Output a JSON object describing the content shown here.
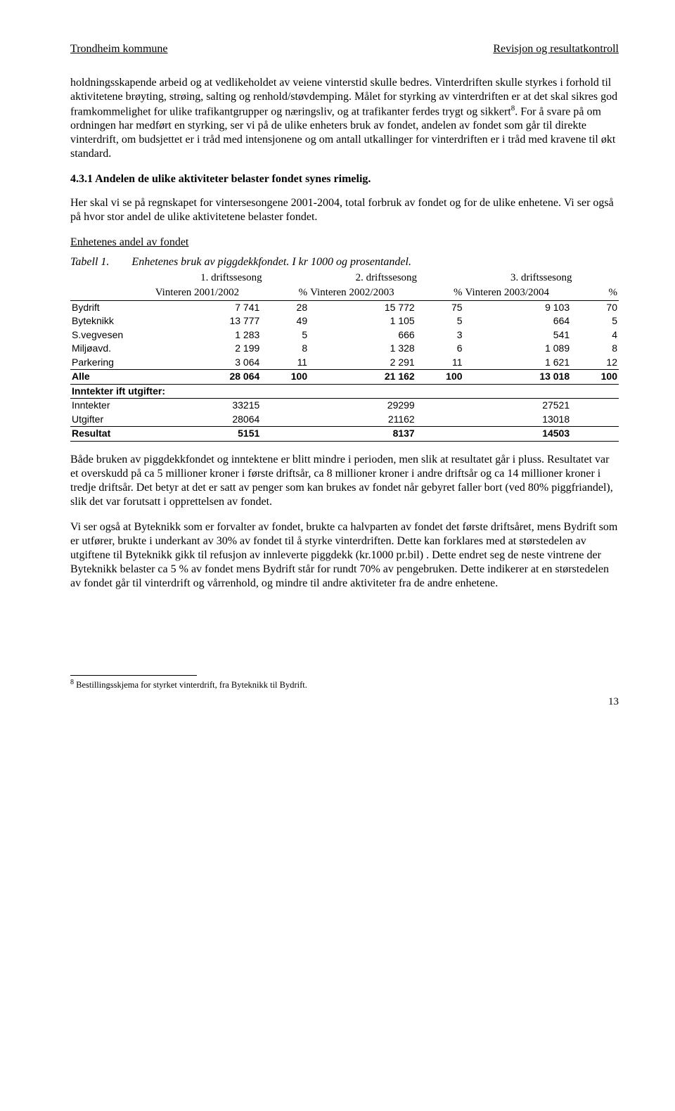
{
  "header": {
    "left": "Trondheim kommune",
    "right": "Revisjon og resultatkontroll"
  },
  "para1": "holdningsskapende arbeid og at vedlikeholdet av veiene vinterstid skulle bedres. Vinterdriften skulle styrkes i forhold til aktivitetene brøyting, strøing, salting og renhold/støvdemping. Målet for styrking av vinterdriften er at det skal sikres god framkommelighet for ulike trafikantgrupper og næringsliv, og at trafikanter ferdes trygt og sikkert",
  "para1_after_sup": ". For å svare på om ordningen har medført en styrking, ser vi på de ulike enheters bruk av fondet, andelen av fondet som går til direkte vinterdrift, om budsjettet er i tråd med intensjonene og om antall utkallinger for vinterdriften er i tråd med kravene til økt standard.",
  "footref": "8",
  "heading431": "4.3.1 Andelen de ulike aktiviteter belaster fondet synes rimelig.",
  "para2": "Her skal vi se på regnskapet for vintersesongene 2001-2004, total forbruk av fondet og for de ulike enhetene. Vi ser også på hvor stor andel de ulike aktivitetene belaster fondet.",
  "subheading": "Enhetenes andel av fondet",
  "table": {
    "title_label": "Tabell 1.",
    "title_text": "Enhetenes bruk av piggdekkfondet. I kr 1000 og prosentandel.",
    "sup_headers": [
      "1. driftssesong",
      "2. driftssesong",
      "3. driftssesong"
    ],
    "sub_headers": [
      "Vinteren 2001/2002",
      "%",
      "Vinteren 2002/2003",
      "%",
      "Vinteren 2003/2004",
      "%"
    ],
    "rows": [
      {
        "label": "Bydrift",
        "v": [
          "7 741",
          "28",
          "15 772",
          "75",
          "9 103",
          "70"
        ]
      },
      {
        "label": "Byteknikk",
        "v": [
          "13 777",
          "49",
          "1 105",
          "5",
          "664",
          "5"
        ]
      },
      {
        "label": "S.vegvesen",
        "v": [
          "1 283",
          "5",
          "666",
          "3",
          "541",
          "4"
        ]
      },
      {
        "label": "Miljøavd.",
        "v": [
          "2 199",
          "8",
          "1 328",
          "6",
          "1 089",
          "8"
        ]
      },
      {
        "label": "Parkering",
        "v": [
          "3 064",
          "11",
          "2 291",
          "11",
          "1 621",
          "12"
        ]
      }
    ],
    "total": {
      "label": "Alle",
      "v": [
        "28 064",
        "100",
        "21 162",
        "100",
        "13 018",
        "100"
      ]
    },
    "section2_label": "Inntekter ift utgifter:",
    "rows2": [
      {
        "label": "Inntekter",
        "v": [
          "33215",
          "",
          "29299",
          "",
          "27521",
          ""
        ]
      },
      {
        "label": "Utgifter",
        "v": [
          "28064",
          "",
          "21162",
          "",
          "13018",
          ""
        ]
      }
    ],
    "result": {
      "label": "Resultat",
      "v": [
        "5151",
        "",
        "8137",
        "",
        "14503",
        ""
      ]
    }
  },
  "para3": "Både bruken av piggdekkfondet og inntektene er blitt mindre i perioden, men slik at resultatet går i pluss. Resultatet var et overskudd på ca 5 millioner kroner i første driftsår, ca 8 millioner kroner i andre driftsår og ca 14 millioner kroner i tredje driftsår. Det betyr at det er satt av penger som kan brukes av fondet når gebyret faller bort (ved 80% piggfriandel), slik det var forutsatt i opprettelsen av fondet.",
  "para4": "Vi ser også at Byteknikk som er forvalter av fondet, brukte ca halvparten av  fondet det første driftsåret, mens Bydrift som er utfører, brukte i underkant av 30% av fondet til å styrke vinterdriften. Dette kan forklares med at størstedelen av utgiftene til Byteknikk gikk til refusjon av innleverte piggdekk (kr.1000 pr.bil) . Dette endret seg de neste vintrene der Byteknikk belaster ca 5 % av fondet mens Bydrift står for rundt 70% av pengebruken. Dette indikerer at en størstedelen av fondet går til vinterdrift og vårrenhold, og mindre til andre aktiviteter fra de andre enhetene.",
  "footnote": "Bestillingsskjema for styrket vinterdrift, fra Byteknikk til Bydrift.",
  "page": "13"
}
